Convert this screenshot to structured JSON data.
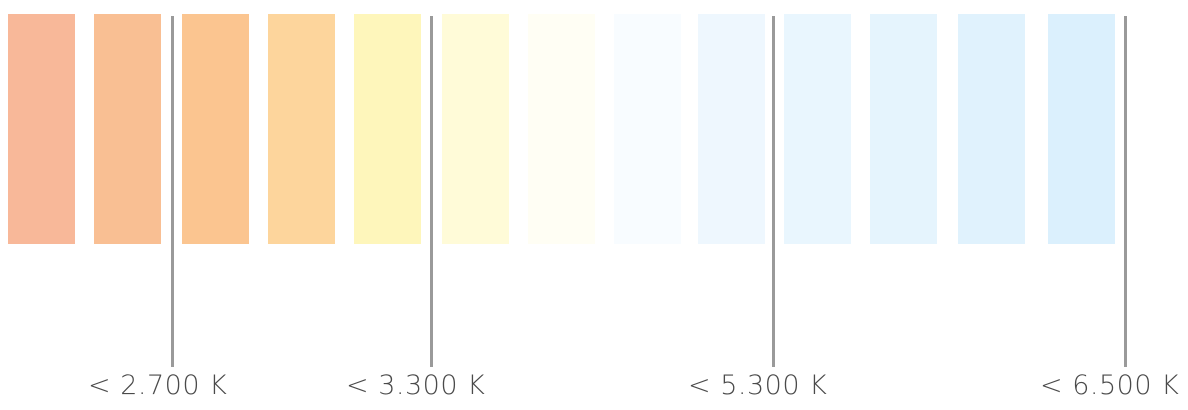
{
  "swatches": [
    {
      "color": "#f8b899"
    },
    {
      "color": "#f9bf93"
    },
    {
      "color": "#fbc590"
    },
    {
      "color": "#fdd59c"
    },
    {
      "color": "#fef6bb"
    },
    {
      "color": "#fffbd8"
    },
    {
      "color": "#fffef4"
    },
    {
      "color": "#f8fcff"
    },
    {
      "color": "#eef7fe"
    },
    {
      "color": "#e9f6fe"
    },
    {
      "color": "#e5f4fd"
    },
    {
      "color": "#e0f2fd"
    },
    {
      "color": "#dbf0fd"
    }
  ],
  "markers": [
    {
      "label": "< 2.700 K"
    },
    {
      "label": "< 3.300 K"
    },
    {
      "label": "< 5.300 K"
    },
    {
      "label": "< 6.500 K"
    }
  ],
  "marker_color": "#9a9a9a",
  "label_color": "#4a4a4a"
}
